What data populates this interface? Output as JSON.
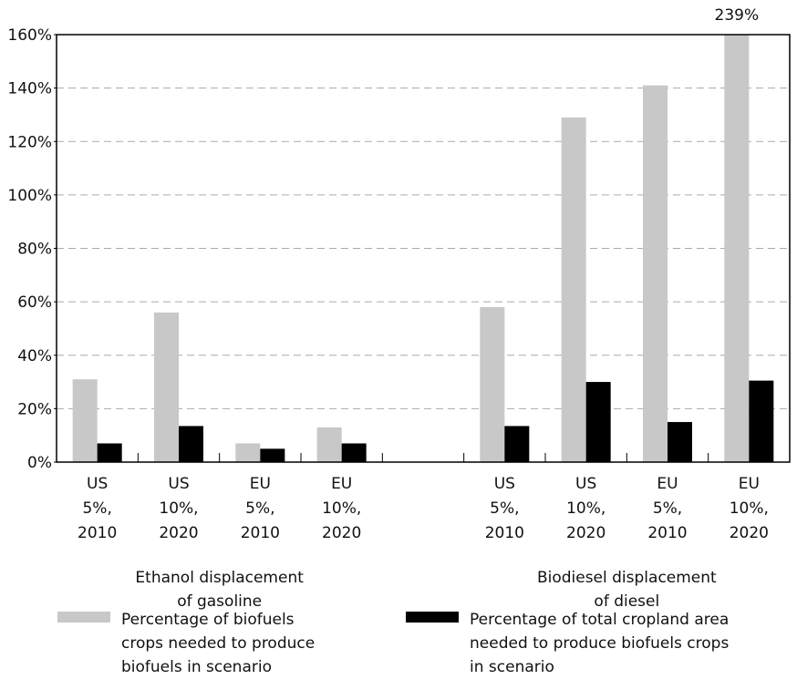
{
  "chart_data": {
    "type": "bar",
    "categories": [
      "US\n5%,\n2010",
      "US\n10%,\n2020",
      "EU\n5%,\n2010",
      "EU\n10%,\n2020",
      null,
      "US\n5%,\n2010",
      "US\n10%,\n2020",
      "EU\n5%,\n2010",
      "EU\n10%,\n2020"
    ],
    "series": [
      {
        "name": "Percentage of biofuels\ncrops needed to produce\nbiofuels in scenario",
        "color": "#c8c8c8",
        "values": [
          31,
          56,
          7,
          13,
          null,
          58,
          129,
          141,
          239
        ],
        "value_labels": [
          null,
          null,
          null,
          null,
          null,
          null,
          null,
          null,
          "239%"
        ]
      },
      {
        "name": "Percentage of total cropland area\nneeded to produce biofuels crops\nin scenario",
        "color": "#000000",
        "values": [
          7,
          13.5,
          5,
          7,
          null,
          13.5,
          30,
          15,
          30.5
        ]
      }
    ],
    "groups": [
      {
        "label": "Ethanol displacement\nof gasoline"
      },
      {
        "label": "Biodiesel displacement\nof diesel"
      }
    ],
    "ylim": [
      0,
      160
    ],
    "yticks": [
      {
        "value": 0,
        "label": "0%"
      },
      {
        "value": 20,
        "label": "20%"
      },
      {
        "value": 40,
        "label": "40%"
      },
      {
        "value": 60,
        "label": "60%"
      },
      {
        "value": 80,
        "label": "80%"
      },
      {
        "value": 100,
        "label": "100%"
      },
      {
        "value": 120,
        "label": "120%"
      },
      {
        "value": 140,
        "label": "140%"
      },
      {
        "value": 160,
        "label": "160%"
      }
    ],
    "grid": true
  }
}
